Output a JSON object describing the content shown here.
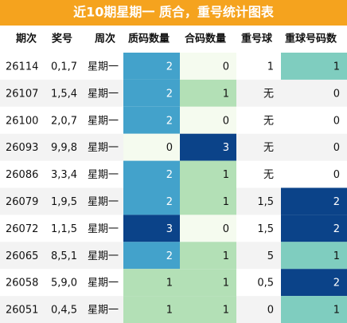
{
  "header": {
    "title": "近10期星期一 质合，重号统计图表"
  },
  "table": {
    "columns": [
      "期次",
      "奖号",
      "周次",
      "质码数量",
      "合码数量",
      "重号球",
      "重球号码数"
    ],
    "rows": [
      [
        "26114",
        "0,1,7",
        "星期一",
        2,
        0,
        "1",
        1
      ],
      [
        "26107",
        "1,5,4",
        "星期一",
        2,
        1,
        "无",
        0
      ],
      [
        "26100",
        "2,0,7",
        "星期一",
        2,
        0,
        "无",
        0
      ],
      [
        "26093",
        "9,9,8",
        "星期一",
        0,
        3,
        "无",
        0
      ],
      [
        "26086",
        "3,3,4",
        "星期一",
        2,
        1,
        "无",
        0
      ],
      [
        "26079",
        "1,9,5",
        "星期一",
        2,
        1,
        "1,5",
        2
      ],
      [
        "26072",
        "1,1,5",
        "星期一",
        3,
        0,
        "1,5",
        2
      ],
      [
        "26065",
        "8,5,1",
        "星期一",
        2,
        1,
        "5",
        1
      ],
      [
        "26058",
        "5,9,0",
        "星期一",
        1,
        1,
        "0,5",
        2
      ],
      [
        "26051",
        "0,4,5",
        "星期一",
        1,
        1,
        "0",
        1
      ]
    ],
    "fills": [
      [
        null,
        null,
        null,
        "#43a2cb",
        "#f5fbef",
        null,
        "#7fcdbf"
      ],
      [
        null,
        null,
        null,
        "#43a2cb",
        "#b3e0b6",
        null,
        null
      ],
      [
        null,
        null,
        null,
        "#43a2cb",
        "#f5fbef",
        null,
        null
      ],
      [
        null,
        null,
        null,
        "#f5fbef",
        "#0b4389",
        null,
        null
      ],
      [
        null,
        null,
        null,
        "#43a2cb",
        "#b3e0b6",
        null,
        null
      ],
      [
        null,
        null,
        null,
        "#43a2cb",
        "#b3e0b6",
        null,
        "#0b4389"
      ],
      [
        null,
        null,
        null,
        "#0b4389",
        "#f5fbef",
        null,
        "#0b4389"
      ],
      [
        null,
        null,
        null,
        "#43a2cb",
        "#b3e0b6",
        null,
        "#7fcdbf"
      ],
      [
        null,
        null,
        null,
        "#b3e0b6",
        "#b3e0b6",
        null,
        "#0b4389"
      ],
      [
        null,
        null,
        null,
        "#b3e0b6",
        "#b3e0b6",
        null,
        "#7fcdbf"
      ]
    ]
  }
}
